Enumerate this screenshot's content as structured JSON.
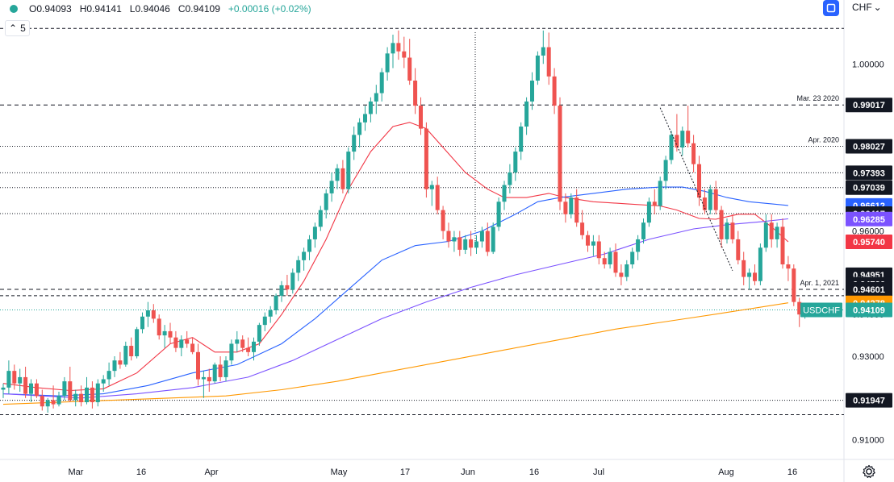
{
  "header": {
    "open": "O0.94093",
    "high": "H0.94141",
    "low": "L0.94046",
    "close": "C0.94109",
    "change": "+0.00016 (+0.02%)",
    "interval": "5",
    "currency": "CHF"
  },
  "colors": {
    "up": "#26a69a",
    "down": "#ef5350",
    "ma_red": "#f23645",
    "ma_blue": "#2962ff",
    "ma_purple": "#7b52ff",
    "ma_orange": "#ff9800",
    "level_line": "#131722"
  },
  "chart_data": {
    "type": "candlestick",
    "x_ticks": [
      "Mar",
      "16",
      "Apr",
      "May",
      "17",
      "Jun",
      "16",
      "Jul",
      "Aug",
      "16"
    ],
    "y_ticks": [
      "0.91000",
      "0.92000",
      "0.93000",
      "0.94000",
      "0.95000",
      "0.96000",
      "0.97000",
      "0.98000",
      "0.99000",
      "1.00000"
    ],
    "y_range": [
      0.9053,
      1.0153
    ],
    "symbol": "USDCHF",
    "last_price": 0.94109,
    "price_labels": [
      {
        "value": 0.99017,
        "text": "0.99017",
        "style": "dark",
        "line": "dashed",
        "note": "Mar. 23 2020"
      },
      {
        "value": 0.98027,
        "text": "0.98027",
        "style": "dark",
        "line": "dotted",
        "note": "Apr. 2020"
      },
      {
        "value": 0.97393,
        "text": "0.97393",
        "style": "dark",
        "line": "dotted",
        "note": ""
      },
      {
        "value": 0.97039,
        "text": "0.97039",
        "style": "dark",
        "line": "dotted",
        "note": ""
      },
      {
        "value": 0.96612,
        "text": "0.96612",
        "style": "blue",
        "line": "none",
        "note": ""
      },
      {
        "value": 0.96417,
        "text": "0.96417",
        "style": "dark",
        "line": "dotted",
        "note": ""
      },
      {
        "value": 0.96285,
        "text": "0.96285",
        "style": "purple",
        "line": "none",
        "note": ""
      },
      {
        "value": 0.9574,
        "text": "0.95740",
        "style": "red",
        "line": "none",
        "note": ""
      },
      {
        "value": 0.94951,
        "text": "0.94951",
        "style": "dark",
        "line": "none",
        "note": ""
      },
      {
        "value": 0.94726,
        "text": "0.94726",
        "style": "dark",
        "line": "none",
        "note": ""
      },
      {
        "value": 0.94601,
        "text": "0.94601",
        "style": "dark",
        "line": "dashed",
        "note": "Apr. 1, 2021"
      },
      {
        "value": 0.94278,
        "text": "0.94278",
        "style": "orange",
        "line": "none",
        "note": ""
      },
      {
        "value": 0.94109,
        "text": "0.94109",
        "style": "teal",
        "line": "none",
        "note": ""
      },
      {
        "value": 0.91947,
        "text": "0.91947",
        "style": "dark",
        "line": "dotted",
        "note": ""
      }
    ],
    "extra_levels": [
      1.0085,
      0.9445,
      0.916
    ],
    "candles": [
      [
        0.922,
        0.9235,
        0.92,
        0.9225
      ],
      [
        0.9225,
        0.929,
        0.921,
        0.9265
      ],
      [
        0.9265,
        0.928,
        0.922,
        0.9235
      ],
      [
        0.9235,
        0.927,
        0.9215,
        0.925
      ],
      [
        0.925,
        0.9275,
        0.92,
        0.921
      ],
      [
        0.921,
        0.9245,
        0.919,
        0.9235
      ],
      [
        0.9235,
        0.9245,
        0.92,
        0.9205
      ],
      [
        0.9205,
        0.922,
        0.917,
        0.918
      ],
      [
        0.918,
        0.92,
        0.9165,
        0.9195
      ],
      [
        0.9195,
        0.923,
        0.9175,
        0.9185
      ],
      [
        0.9185,
        0.9215,
        0.918,
        0.9205
      ],
      [
        0.9205,
        0.925,
        0.9195,
        0.924
      ],
      [
        0.924,
        0.9275,
        0.919,
        0.9195
      ],
      [
        0.9195,
        0.922,
        0.918,
        0.921
      ],
      [
        0.921,
        0.923,
        0.918,
        0.919
      ],
      [
        0.919,
        0.925,
        0.9185,
        0.9225
      ],
      [
        0.9225,
        0.924,
        0.9175,
        0.919
      ],
      [
        0.919,
        0.9245,
        0.918,
        0.9235
      ],
      [
        0.9235,
        0.9255,
        0.9215,
        0.9245
      ],
      [
        0.9245,
        0.9285,
        0.923,
        0.9265
      ],
      [
        0.9265,
        0.93,
        0.925,
        0.929
      ],
      [
        0.929,
        0.931,
        0.927,
        0.928
      ],
      [
        0.928,
        0.9335,
        0.9275,
        0.9325
      ],
      [
        0.9325,
        0.9345,
        0.929,
        0.93
      ],
      [
        0.93,
        0.937,
        0.9295,
        0.9365
      ],
      [
        0.9365,
        0.9405,
        0.9355,
        0.9395
      ],
      [
        0.9395,
        0.943,
        0.937,
        0.941
      ],
      [
        0.941,
        0.9425,
        0.938,
        0.939
      ],
      [
        0.939,
        0.94,
        0.934,
        0.935
      ],
      [
        0.935,
        0.9375,
        0.932,
        0.936
      ],
      [
        0.936,
        0.938,
        0.933,
        0.9345
      ],
      [
        0.9345,
        0.936,
        0.931,
        0.932
      ],
      [
        0.932,
        0.935,
        0.93,
        0.934
      ],
      [
        0.934,
        0.936,
        0.932,
        0.933
      ],
      [
        0.933,
        0.9345,
        0.9305,
        0.931
      ],
      [
        0.931,
        0.933,
        0.923,
        0.9245
      ],
      [
        0.9245,
        0.9265,
        0.92,
        0.925
      ],
      [
        0.925,
        0.927,
        0.9215,
        0.924
      ],
      [
        0.924,
        0.9285,
        0.9235,
        0.928
      ],
      [
        0.928,
        0.93,
        0.924,
        0.925
      ],
      [
        0.925,
        0.93,
        0.924,
        0.929
      ],
      [
        0.929,
        0.934,
        0.928,
        0.933
      ],
      [
        0.933,
        0.936,
        0.931,
        0.934
      ],
      [
        0.934,
        0.935,
        0.931,
        0.932
      ],
      [
        0.932,
        0.9345,
        0.93,
        0.931
      ],
      [
        0.931,
        0.9345,
        0.929,
        0.9335
      ],
      [
        0.9335,
        0.938,
        0.9325,
        0.9375
      ],
      [
        0.9375,
        0.9405,
        0.936,
        0.9395
      ],
      [
        0.9395,
        0.942,
        0.938,
        0.941
      ],
      [
        0.941,
        0.945,
        0.94,
        0.9445
      ],
      [
        0.9445,
        0.948,
        0.943,
        0.947
      ],
      [
        0.947,
        0.9495,
        0.9445,
        0.946
      ],
      [
        0.946,
        0.951,
        0.945,
        0.95
      ],
      [
        0.95,
        0.954,
        0.948,
        0.953
      ],
      [
        0.953,
        0.956,
        0.9505,
        0.955
      ],
      [
        0.955,
        0.959,
        0.953,
        0.958
      ],
      [
        0.958,
        0.962,
        0.956,
        0.961
      ],
      [
        0.961,
        0.966,
        0.96,
        0.965
      ],
      [
        0.965,
        0.97,
        0.963,
        0.969
      ],
      [
        0.969,
        0.974,
        0.967,
        0.972
      ],
      [
        0.972,
        0.976,
        0.97,
        0.975
      ],
      [
        0.975,
        0.977,
        0.969,
        0.97
      ],
      [
        0.97,
        0.98,
        0.969,
        0.979
      ],
      [
        0.979,
        0.985,
        0.977,
        0.983
      ],
      [
        0.983,
        0.987,
        0.98,
        0.986
      ],
      [
        0.986,
        0.99,
        0.984,
        0.988
      ],
      [
        0.988,
        0.992,
        0.986,
        0.991
      ],
      [
        0.991,
        0.995,
        0.988,
        0.993
      ],
      [
        0.993,
        0.999,
        0.991,
        0.998
      ],
      [
        0.998,
        1.004,
        0.996,
        1.0025
      ],
      [
        1.0025,
        1.007,
        0.999,
        1.005
      ],
      [
        1.005,
        1.008,
        1.001,
        1.003
      ],
      [
        1.003,
        1.0065,
        0.999,
        1.0015
      ],
      [
        1.0015,
        1.006,
        0.995,
        0.996
      ],
      [
        0.996,
        0.999,
        0.988,
        0.99
      ],
      [
        0.99,
        0.992,
        0.983,
        0.9845
      ],
      [
        0.9845,
        0.986,
        0.968,
        0.97
      ],
      [
        0.97,
        0.972,
        0.966,
        0.971
      ],
      [
        0.971,
        0.973,
        0.964,
        0.965
      ],
      [
        0.965,
        0.966,
        0.958,
        0.96
      ],
      [
        0.96,
        0.962,
        0.956,
        0.9575
      ],
      [
        0.9575,
        0.96,
        0.955,
        0.9585
      ],
      [
        0.9585,
        0.96,
        0.954,
        0.9555
      ],
      [
        0.9555,
        0.959,
        0.9545,
        0.958
      ],
      [
        0.958,
        0.96,
        0.954,
        0.956
      ],
      [
        0.956,
        0.959,
        0.9545,
        0.9575
      ],
      [
        0.9575,
        0.961,
        0.956,
        0.96
      ],
      [
        0.96,
        0.962,
        0.954,
        0.955
      ],
      [
        0.955,
        0.962,
        0.9545,
        0.961
      ],
      [
        0.961,
        0.968,
        0.96,
        0.967
      ],
      [
        0.967,
        0.972,
        0.965,
        0.971
      ],
      [
        0.971,
        0.976,
        0.969,
        0.974
      ],
      [
        0.974,
        0.98,
        0.972,
        0.979
      ],
      [
        0.979,
        0.986,
        0.977,
        0.985
      ],
      [
        0.985,
        0.992,
        0.983,
        0.991
      ],
      [
        0.991,
        0.998,
        0.989,
        0.996
      ],
      [
        0.996,
        1.003,
        0.995,
        1.002
      ],
      [
        1.002,
        1.008,
        1.0,
        1.004
      ],
      [
        1.004,
        1.0075,
        0.995,
        0.997
      ],
      [
        0.997,
        0.999,
        0.988,
        0.99
      ],
      [
        0.99,
        0.992,
        0.965,
        0.967
      ],
      [
        0.967,
        0.969,
        0.962,
        0.964
      ],
      [
        0.964,
        0.969,
        0.963,
        0.968
      ],
      [
        0.968,
        0.97,
        0.961,
        0.962
      ],
      [
        0.962,
        0.965,
        0.958,
        0.959
      ],
      [
        0.959,
        0.96,
        0.955,
        0.9565
      ],
      [
        0.9565,
        0.959,
        0.954,
        0.9575
      ],
      [
        0.9575,
        0.959,
        0.952,
        0.9535
      ],
      [
        0.9535,
        0.955,
        0.951,
        0.952
      ],
      [
        0.952,
        0.956,
        0.951,
        0.955
      ],
      [
        0.955,
        0.957,
        0.949,
        0.95
      ],
      [
        0.95,
        0.952,
        0.947,
        0.949
      ],
      [
        0.949,
        0.953,
        0.948,
        0.952
      ],
      [
        0.952,
        0.956,
        0.951,
        0.955
      ],
      [
        0.955,
        0.959,
        0.953,
        0.958
      ],
      [
        0.958,
        0.963,
        0.957,
        0.962
      ],
      [
        0.962,
        0.968,
        0.961,
        0.967
      ],
      [
        0.967,
        0.97,
        0.964,
        0.966
      ],
      [
        0.966,
        0.973,
        0.965,
        0.972
      ],
      [
        0.972,
        0.978,
        0.97,
        0.977
      ],
      [
        0.977,
        0.984,
        0.976,
        0.983
      ],
      [
        0.983,
        0.988,
        0.979,
        0.98
      ],
      [
        0.98,
        0.985,
        0.978,
        0.984
      ],
      [
        0.984,
        0.99,
        0.98,
        0.981
      ],
      [
        0.981,
        0.983,
        0.974,
        0.976
      ],
      [
        0.976,
        0.978,
        0.966,
        0.968
      ],
      [
        0.968,
        0.97,
        0.964,
        0.965
      ],
      [
        0.965,
        0.971,
        0.964,
        0.97
      ],
      [
        0.97,
        0.972,
        0.964,
        0.965
      ],
      [
        0.965,
        0.966,
        0.956,
        0.958
      ],
      [
        0.958,
        0.963,
        0.957,
        0.962
      ],
      [
        0.962,
        0.964,
        0.957,
        0.958
      ],
      [
        0.958,
        0.96,
        0.952,
        0.953
      ],
      [
        0.953,
        0.955,
        0.947,
        0.949
      ],
      [
        0.949,
        0.951,
        0.946,
        0.95
      ],
      [
        0.95,
        0.952,
        0.947,
        0.948
      ],
      [
        0.948,
        0.957,
        0.947,
        0.956
      ],
      [
        0.956,
        0.964,
        0.955,
        0.962
      ],
      [
        0.962,
        0.964,
        0.956,
        0.958
      ],
      [
        0.958,
        0.962,
        0.956,
        0.961
      ],
      [
        0.961,
        0.963,
        0.951,
        0.952
      ],
      [
        0.952,
        0.954,
        0.948,
        0.951
      ],
      [
        0.951,
        0.952,
        0.942,
        0.943
      ],
      [
        0.943,
        0.944,
        0.937,
        0.94
      ],
      [
        0.94,
        0.9415,
        0.939,
        0.9411
      ]
    ],
    "moving_averages": [
      {
        "color": "ma_red",
        "points": [
          [
            0,
            0.9235
          ],
          [
            6,
            0.9225
          ],
          [
            12,
            0.9218
          ],
          [
            18,
            0.9222
          ],
          [
            24,
            0.926
          ],
          [
            30,
            0.933
          ],
          [
            34,
            0.9345
          ],
          [
            38,
            0.931
          ],
          [
            42,
            0.931
          ],
          [
            46,
            0.933
          ],
          [
            50,
            0.94
          ],
          [
            54,
            0.948
          ],
          [
            58,
            0.958
          ],
          [
            62,
            0.97
          ],
          [
            66,
            0.979
          ],
          [
            70,
            0.985
          ],
          [
            73,
            0.986
          ],
          [
            76,
            0.9845
          ],
          [
            79,
            0.98
          ],
          [
            83,
            0.974
          ],
          [
            87,
            0.97
          ],
          [
            90,
            0.968
          ],
          [
            94,
            0.968
          ],
          [
            98,
            0.969
          ],
          [
            101,
            0.968
          ],
          [
            106,
            0.967
          ],
          [
            112,
            0.9665
          ],
          [
            118,
            0.966
          ],
          [
            121,
            0.965
          ],
          [
            125,
            0.963
          ],
          [
            128,
            0.9628
          ],
          [
            132,
            0.964
          ],
          [
            135,
            0.964
          ],
          [
            138,
            0.961
          ],
          [
            141,
            0.9574
          ]
        ]
      },
      {
        "color": "ma_blue",
        "points": [
          [
            0,
            0.921
          ],
          [
            10,
            0.9205
          ],
          [
            18,
            0.921
          ],
          [
            26,
            0.923
          ],
          [
            34,
            0.926
          ],
          [
            42,
            0.928
          ],
          [
            50,
            0.933
          ],
          [
            56,
            0.939
          ],
          [
            62,
            0.946
          ],
          [
            68,
            0.953
          ],
          [
            74,
            0.9565
          ],
          [
            80,
            0.9575
          ],
          [
            86,
            0.96
          ],
          [
            92,
            0.964
          ],
          [
            96,
            0.967
          ],
          [
            100,
            0.968
          ],
          [
            106,
            0.969
          ],
          [
            112,
            0.97
          ],
          [
            118,
            0.9705
          ],
          [
            122,
            0.9705
          ],
          [
            126,
            0.9695
          ],
          [
            130,
            0.968
          ],
          [
            134,
            0.967
          ],
          [
            138,
            0.9665
          ],
          [
            141,
            0.9661
          ]
        ]
      },
      {
        "color": "ma_purple",
        "points": [
          [
            0,
            0.921
          ],
          [
            14,
            0.92
          ],
          [
            24,
            0.921
          ],
          [
            34,
            0.9225
          ],
          [
            44,
            0.925
          ],
          [
            52,
            0.929
          ],
          [
            60,
            0.934
          ],
          [
            68,
            0.939
          ],
          [
            76,
            0.943
          ],
          [
            84,
            0.9465
          ],
          [
            92,
            0.9495
          ],
          [
            100,
            0.952
          ],
          [
            108,
            0.9545
          ],
          [
            116,
            0.958
          ],
          [
            124,
            0.9605
          ],
          [
            130,
            0.9615
          ],
          [
            136,
            0.9622
          ],
          [
            141,
            0.9629
          ]
        ]
      },
      {
        "color": "ma_orange",
        "points": [
          [
            0,
            0.9185
          ],
          [
            20,
            0.9195
          ],
          [
            40,
            0.9205
          ],
          [
            50,
            0.922
          ],
          [
            60,
            0.924
          ],
          [
            70,
            0.9265
          ],
          [
            80,
            0.929
          ],
          [
            90,
            0.9315
          ],
          [
            100,
            0.934
          ],
          [
            110,
            0.9365
          ],
          [
            120,
            0.9385
          ],
          [
            130,
            0.9405
          ],
          [
            141,
            0.9428
          ]
        ]
      }
    ],
    "trendline": {
      "from": [
        118,
        0.9895
      ],
      "to": [
        131,
        0.9505
      ]
    }
  }
}
